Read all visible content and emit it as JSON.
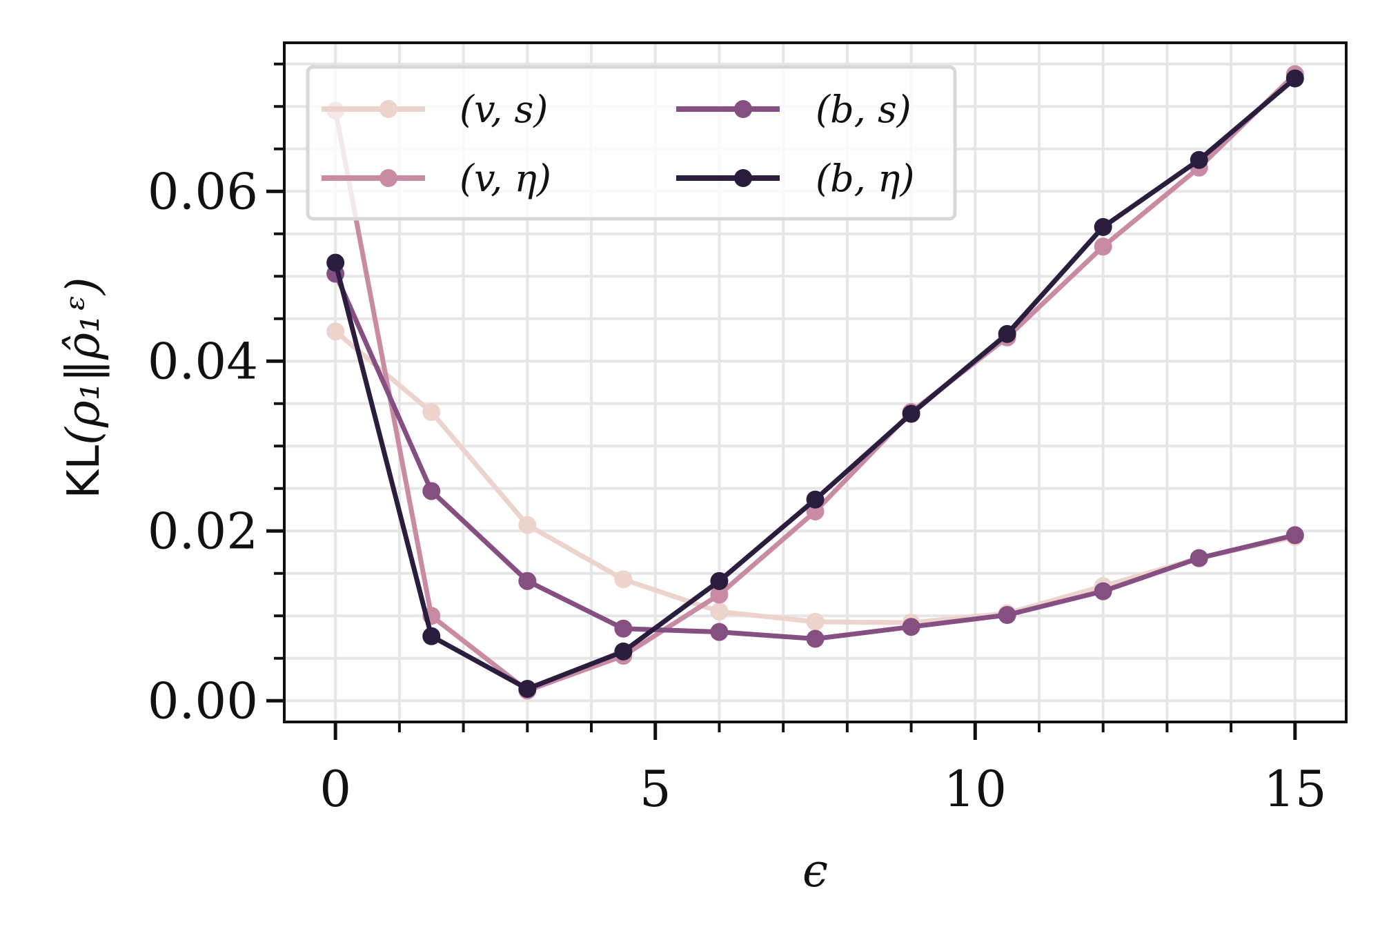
{
  "chart_data": {
    "type": "line",
    "xlabel": "ϵ",
    "ylabel": {
      "prefix": "KL",
      "math": "(ρ₁‖ρ̂₁ᵋ)"
    },
    "xlim": [
      -0.8,
      15.8
    ],
    "ylim": [
      -0.0025,
      0.0775
    ],
    "x_ticks": [
      0,
      5,
      10,
      15
    ],
    "x_tick_labels": [
      "0",
      "5",
      "10",
      "15"
    ],
    "x_minor_ticks": [
      1,
      2,
      3,
      4,
      6,
      7,
      8,
      9,
      11,
      12,
      13,
      14
    ],
    "y_ticks": [
      0.0,
      0.02,
      0.04,
      0.06
    ],
    "y_tick_labels": [
      "0.00",
      "0.02",
      "0.04",
      "0.06"
    ],
    "y_minor_ticks": [
      0.005,
      0.01,
      0.015,
      0.025,
      0.03,
      0.035,
      0.045,
      0.05,
      0.055,
      0.065,
      0.07,
      0.075
    ],
    "grid": true,
    "legend_position": "top-left",
    "legend_columns": 2,
    "x": [
      0,
      1.5,
      3,
      4.5,
      6,
      7.5,
      9,
      10.5,
      12,
      13.5,
      15
    ],
    "series": [
      {
        "name": "(v, s)",
        "color": "#ecd3cc",
        "values": [
          0.0435,
          0.034,
          0.0207,
          0.0143,
          0.0105,
          0.0093,
          0.0092,
          0.0103,
          0.0135,
          0.0168,
          0.0193
        ]
      },
      {
        "name": "(v, η)",
        "color": "#c98ba3",
        "values": [
          0.0695,
          0.01,
          0.0012,
          0.0053,
          0.0125,
          0.0223,
          0.034,
          0.0428,
          0.0535,
          0.0628,
          0.0738
        ]
      },
      {
        "name": "(b, s)",
        "color": "#854f82",
        "values": [
          0.0503,
          0.0247,
          0.0141,
          0.0085,
          0.0081,
          0.0073,
          0.0087,
          0.0101,
          0.0129,
          0.0168,
          0.0195
        ]
      },
      {
        "name": "(b, η)",
        "color": "#2a1d3e",
        "values": [
          0.0516,
          0.0076,
          0.0014,
          0.0058,
          0.0141,
          0.0237,
          0.0338,
          0.0432,
          0.0558,
          0.0637,
          0.0733
        ]
      }
    ]
  }
}
